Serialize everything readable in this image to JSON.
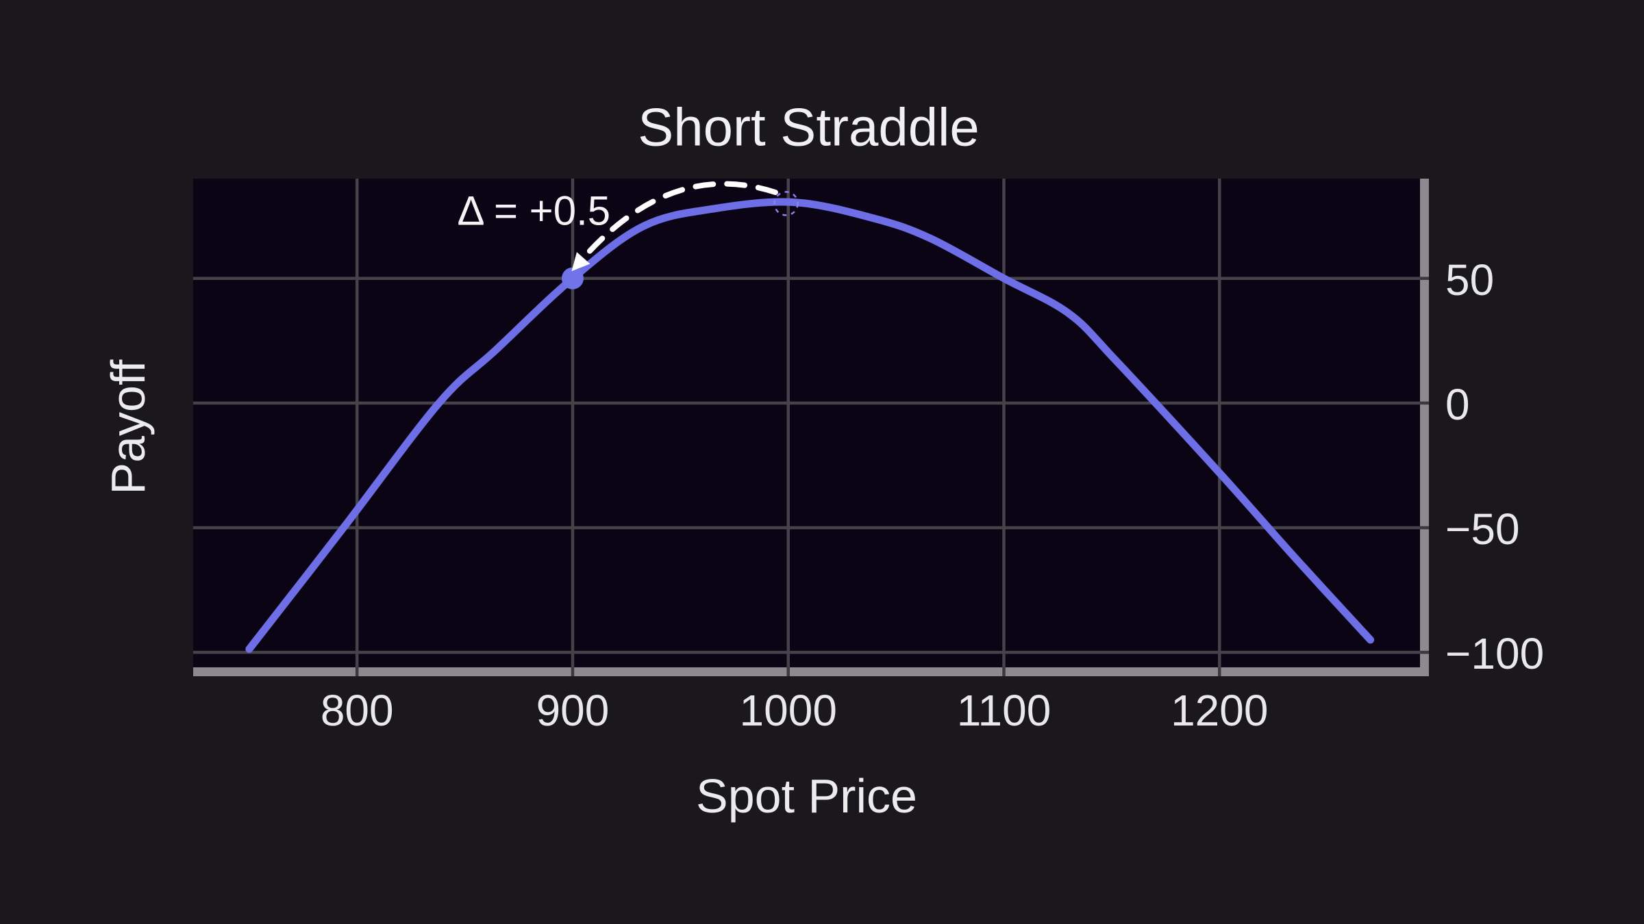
{
  "chart_data": {
    "type": "line",
    "title": "Short Straddle",
    "xlabel": "Spot Price",
    "ylabel": "Payoff",
    "xlim": [
      724,
      1293
    ],
    "ylim": [
      -106,
      90
    ],
    "grid": true,
    "legend": false,
    "x_ticks": [
      {
        "value": 800,
        "label": "800"
      },
      {
        "value": 900,
        "label": "900"
      },
      {
        "value": 1000,
        "label": "1000"
      },
      {
        "value": 1100,
        "label": "1100"
      },
      {
        "value": 1200,
        "label": "1200"
      }
    ],
    "y_ticks": [
      {
        "value": 50,
        "label": "50"
      },
      {
        "value": 0,
        "label": "0"
      },
      {
        "value": -50,
        "label": "−50"
      },
      {
        "value": -100,
        "label": "−100"
      }
    ],
    "series": [
      {
        "name": "short-straddle-payoff",
        "color": "#6e6fe7",
        "stroke_width": 11,
        "points": [
          [
            750,
            -98.7
          ],
          [
            794,
            -49.7
          ],
          [
            838,
            0
          ],
          [
            864,
            21
          ],
          [
            900,
            50
          ],
          [
            933,
            71
          ],
          [
            966,
            78
          ],
          [
            1003,
            80.5
          ],
          [
            1040,
            74
          ],
          [
            1066,
            66
          ],
          [
            1100,
            50
          ],
          [
            1130,
            36
          ],
          [
            1152,
            17
          ],
          [
            1200,
            -28
          ],
          [
            1235,
            -62
          ],
          [
            1270,
            -95
          ]
        ]
      }
    ],
    "markers": {
      "delta_point": {
        "x": 900,
        "y": 50,
        "radius_px": 16,
        "style": "filled",
        "color": "#7173e9"
      },
      "peak_point": {
        "x": 999,
        "y": 80,
        "radius_px": 17,
        "style": "dashed-hollow",
        "color": "#8586ea"
      }
    },
    "annotation": {
      "text": "Δ = +0.5",
      "text_pos": {
        "x": 882,
        "y": 77
      },
      "arrow": {
        "color": "#ffffff",
        "start": {
          "x": 994,
          "y": 84.5
        },
        "control": {
          "x": 946,
          "y": 98
        },
        "end": {
          "x": 905,
          "y": 58.2
        }
      }
    },
    "colors": {
      "outer_background": "#1b181d",
      "plot_background": "#0b0415",
      "gridline": "#45424a",
      "spine": "#8c8a8e",
      "tick_notch": "#3b383f",
      "text": "#eeedee"
    }
  }
}
